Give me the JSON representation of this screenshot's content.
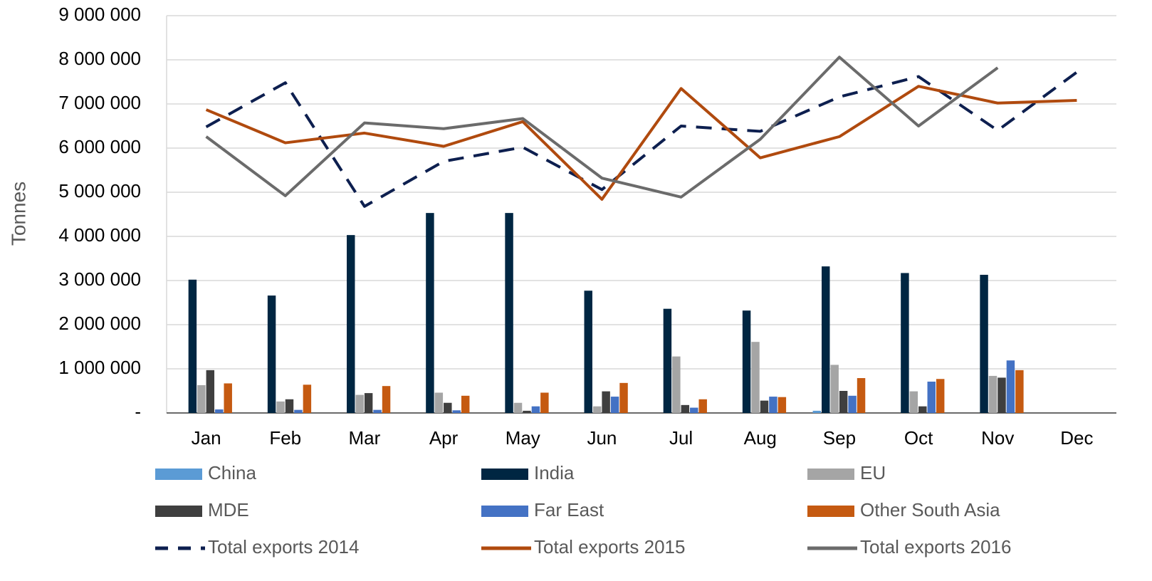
{
  "chart_data": {
    "type": "bar",
    "y_label": "Tonnes",
    "categories": [
      "Jan",
      "Feb",
      "Mar",
      "Apr",
      "May",
      "Jun",
      "Jul",
      "Aug",
      "Sep",
      "Oct",
      "Nov",
      "Dec"
    ],
    "ylim": [
      0,
      9000000
    ],
    "yticks": [
      {
        "value": 0,
        "label": "-"
      },
      {
        "value": 1000000,
        "label": "1 000 000"
      },
      {
        "value": 2000000,
        "label": "2 000 000"
      },
      {
        "value": 3000000,
        "label": "3 000 000"
      },
      {
        "value": 4000000,
        "label": "4 000 000"
      },
      {
        "value": 5000000,
        "label": "5 000 000"
      },
      {
        "value": 6000000,
        "label": "6 000 000"
      },
      {
        "value": 7000000,
        "label": "7 000 000"
      },
      {
        "value": 8000000,
        "label": "8 000 000"
      },
      {
        "value": 9000000,
        "label": "9 000 000"
      }
    ],
    "grid": true,
    "series": [
      {
        "name": "China",
        "type": "bar",
        "color": "#5b9bd5",
        "values": [
          0,
          0,
          0,
          0,
          0,
          0,
          0,
          0,
          50000,
          0,
          0,
          null
        ]
      },
      {
        "name": "India",
        "type": "bar",
        "color": "#002642",
        "values": [
          3020000,
          2660000,
          4030000,
          4530000,
          4530000,
          2770000,
          2360000,
          2320000,
          3320000,
          3170000,
          3130000,
          null
        ]
      },
      {
        "name": "EU",
        "type": "bar",
        "color": "#a5a5a5",
        "values": [
          630000,
          260000,
          410000,
          460000,
          230000,
          150000,
          1280000,
          1610000,
          1090000,
          490000,
          840000,
          null
        ]
      },
      {
        "name": "MDE",
        "type": "bar",
        "color": "#3f3f3f",
        "values": [
          970000,
          310000,
          450000,
          230000,
          50000,
          490000,
          180000,
          280000,
          500000,
          150000,
          800000,
          null
        ]
      },
      {
        "name": "Far East",
        "type": "bar",
        "color": "#4472c4",
        "values": [
          80000,
          70000,
          70000,
          60000,
          150000,
          370000,
          120000,
          370000,
          390000,
          710000,
          1190000,
          null
        ]
      },
      {
        "name": "Other South Asia",
        "type": "bar",
        "color": "#c55a11",
        "values": [
          670000,
          640000,
          610000,
          390000,
          460000,
          680000,
          310000,
          360000,
          790000,
          770000,
          970000,
          null
        ]
      },
      {
        "name": "Total exports 2014",
        "type": "line",
        "dash": true,
        "color": "#0d1f4f",
        "values": [
          6480000,
          7480000,
          4680000,
          5700000,
          6020000,
          5060000,
          6500000,
          6380000,
          7160000,
          7620000,
          6400000,
          7720000
        ]
      },
      {
        "name": "Total exports 2015",
        "type": "line",
        "dash": false,
        "color": "#b04a0e",
        "values": [
          6870000,
          6120000,
          6340000,
          6040000,
          6600000,
          4840000,
          7350000,
          5780000,
          6260000,
          7400000,
          7020000,
          7080000
        ]
      },
      {
        "name": "Total exports 2016",
        "type": "line",
        "dash": false,
        "color": "#6b6b6b",
        "values": [
          6260000,
          4920000,
          6570000,
          6440000,
          6670000,
          5320000,
          4890000,
          6200000,
          8060000,
          6500000,
          7820000,
          null
        ]
      }
    ]
  }
}
